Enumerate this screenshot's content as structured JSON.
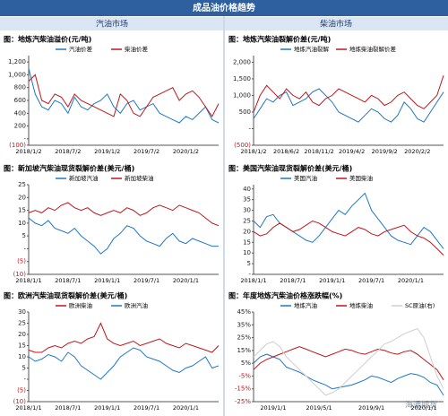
{
  "header": {
    "title": "成品油价格趋势",
    "left": "汽油市场",
    "right": "柴油市场",
    "watermark": "海通期货"
  },
  "chart_data": [
    {
      "type": "line",
      "title": "图：地炼汽柴油溢价(元/吨)",
      "categories": [
        "2018/1/2",
        null,
        null,
        null,
        null,
        null,
        "2018/7/2",
        null,
        null,
        null,
        null,
        null,
        "2019/1/2",
        null,
        null,
        null,
        null,
        null,
        "2019/7/2",
        null,
        null,
        null,
        null,
        null,
        "2020/1/2",
        null,
        null,
        null,
        null,
        null
      ],
      "series": [
        {
          "name": "汽油价差",
          "color": "#1f77c8",
          "values": [
            1100,
            700,
            500,
            450,
            600,
            550,
            400,
            650,
            500,
            450,
            550,
            600,
            700,
            500,
            400,
            550,
            600,
            450,
            500,
            550,
            400,
            350,
            300,
            250,
            350,
            300,
            400,
            500,
            300,
            250
          ]
        },
        {
          "name": "柴油价差",
          "color": "#c0161d",
          "values": [
            900,
            1000,
            600,
            550,
            700,
            650,
            500,
            700,
            600,
            550,
            500,
            450,
            400,
            350,
            700,
            600,
            400,
            350,
            500,
            650,
            700,
            750,
            800,
            600,
            700,
            750,
            650,
            500,
            350,
            550
          ]
        }
      ],
      "ylim": [
        -100,
        1300
      ],
      "yticks": [
        {
          "value": 1200,
          "label": "1,200"
        },
        {
          "value": 1000,
          "label": "1,000"
        },
        800,
        600,
        400,
        200,
        {
          "value": 0,
          "label": "-"
        },
        {
          "value": -100,
          "label": "(100)"
        }
      ]
    },
    {
      "type": "line",
      "title": "图：地炼汽柴油裂解价差(元/吨)",
      "categories": [
        "2018/1/2",
        null,
        null,
        null,
        null,
        "2018/6/2",
        null,
        null,
        null,
        null,
        "2018/11/2",
        null,
        null,
        null,
        null,
        "2019/4/2",
        null,
        null,
        null,
        null,
        "2019/9/2",
        null,
        null,
        null,
        null,
        "2020/2/2",
        null,
        null,
        null,
        null
      ],
      "series": [
        {
          "name": "地炼汽油裂解",
          "color": "#1f77c8",
          "values": [
            300,
            600,
            900,
            800,
            1000,
            1100,
            700,
            800,
            900,
            1100,
            1200,
            1000,
            800,
            500,
            400,
            300,
            200,
            400,
            600,
            500,
            300,
            200,
            400,
            800,
            600,
            300,
            200,
            500,
            800,
            1100
          ]
        },
        {
          "name": "地炼柴油裂解价差",
          "color": "#c0161d",
          "values": [
            500,
            1000,
            1300,
            1100,
            900,
            1200,
            1000,
            900,
            1100,
            800,
            700,
            900,
            1000,
            1200,
            1100,
            1000,
            900,
            800,
            1000,
            900,
            700,
            800,
            1000,
            1100,
            900,
            700,
            600,
            800,
            1000,
            1600
          ]
        }
      ],
      "ylim": [
        -500,
        2200
      ],
      "yticks": [
        {
          "value": 2000,
          "label": "2,000"
        },
        {
          "value": 1500,
          "label": "1,500"
        },
        {
          "value": 1000,
          "label": "1,000"
        },
        500,
        {
          "value": 0,
          "label": "-"
        },
        {
          "value": -500,
          "label": "(500)"
        }
      ]
    },
    {
      "type": "line",
      "title": "图：新加坡汽柴油现货裂解价差(美元/桶)",
      "categories": [
        "2018/1/1",
        null,
        null,
        null,
        null,
        null,
        "2018/7/1",
        null,
        null,
        null,
        null,
        null,
        "2019/1/1",
        null,
        null,
        null,
        null,
        null,
        "2019/7/1",
        null,
        null,
        null,
        null,
        null,
        "2020/1/1",
        null,
        null,
        null,
        null,
        null
      ],
      "series": [
        {
          "name": "新加坡汽油",
          "color": "#1f77c8",
          "values": [
            12,
            10,
            9,
            11,
            8,
            7,
            6,
            8,
            5,
            3,
            1,
            -2,
            0,
            4,
            6,
            9,
            8,
            5,
            3,
            2,
            1,
            4,
            6,
            3,
            2,
            4,
            3,
            2,
            1,
            1
          ]
        },
        {
          "name": "新加坡柴油",
          "color": "#c0161d",
          "values": [
            14,
            15,
            14,
            16,
            15,
            17,
            18,
            16,
            15,
            16,
            14,
            13,
            14,
            15,
            14,
            16,
            15,
            13,
            14,
            16,
            17,
            16,
            15,
            17,
            16,
            15,
            14,
            12,
            10,
            9
          ]
        }
      ],
      "ylim": [
        -10,
        25
      ],
      "yticks": [
        25,
        20,
        15,
        10,
        5,
        {
          "value": 0,
          "label": "-"
        },
        {
          "value": -5,
          "label": "(5)"
        },
        {
          "value": -10,
          "label": "(10)"
        }
      ]
    },
    {
      "type": "line",
      "title": "图：美国汽柴油现货裂解价差(美元/桶)",
      "categories": [
        "2018/1/1",
        null,
        null,
        null,
        null,
        null,
        "2018/7/1",
        null,
        null,
        null,
        null,
        null,
        "2019/1/1",
        null,
        null,
        null,
        null,
        null,
        "2019/7/1",
        null,
        null,
        null,
        null,
        null,
        "2020/1/1",
        null,
        null,
        null,
        null,
        null
      ],
      "series": [
        {
          "name": "美国汽油",
          "color": "#1f77c8",
          "values": [
            25,
            22,
            27,
            28,
            24,
            22,
            20,
            18,
            16,
            15,
            18,
            22,
            26,
            30,
            28,
            32,
            35,
            38,
            30,
            26,
            22,
            18,
            16,
            15,
            14,
            18,
            22,
            20,
            16,
            12
          ]
        },
        {
          "name": "美国柴油",
          "color": "#c0161d",
          "values": [
            20,
            18,
            19,
            22,
            24,
            22,
            20,
            21,
            23,
            25,
            24,
            22,
            20,
            19,
            18,
            20,
            22,
            21,
            19,
            18,
            20,
            21,
            22,
            23,
            20,
            18,
            17,
            15,
            12,
            9
          ]
        }
      ],
      "ylim": [
        0,
        42
      ],
      "yticks": [
        40,
        35,
        30,
        25,
        20,
        15,
        10,
        5,
        {
          "value": 0,
          "label": "-"
        }
      ]
    },
    {
      "type": "line",
      "title": "图：欧洲汽柴油现货裂解价差(美元/桶)",
      "categories": [
        "2018/1/1",
        null,
        null,
        null,
        null,
        null,
        "2018/7/1",
        null,
        null,
        null,
        null,
        null,
        "2019/1/1",
        null,
        null,
        null,
        null,
        null,
        "2019/7/1",
        null,
        null,
        null,
        null,
        null,
        "2020/1/1",
        null,
        null,
        null,
        null,
        null
      ],
      "series": [
        {
          "name": "欧洲柴油",
          "color": "#c0161d",
          "values": [
            13,
            12,
            12,
            14,
            15,
            14,
            16,
            17,
            16,
            18,
            19,
            25,
            18,
            16,
            15,
            16,
            17,
            15,
            16,
            17,
            18,
            16,
            15,
            14,
            16,
            15,
            14,
            13,
            12,
            15
          ]
        },
        {
          "name": "欧洲汽油",
          "color": "#1f77c8",
          "values": [
            10,
            8,
            9,
            11,
            10,
            8,
            12,
            10,
            6,
            4,
            2,
            0,
            3,
            6,
            10,
            12,
            14,
            13,
            10,
            9,
            8,
            6,
            4,
            3,
            5,
            6,
            8,
            10,
            5,
            6
          ]
        }
      ],
      "ylim": [
        -10,
        30
      ],
      "yticks": [
        30,
        25,
        20,
        15,
        10,
        5,
        {
          "value": 0,
          "label": "-"
        },
        {
          "value": -5,
          "label": "(5)"
        },
        {
          "value": -10,
          "label": "(10)"
        }
      ]
    },
    {
      "type": "line",
      "title": "图：年度地炼汽柴油价格涨跌幅(%)",
      "categories": [
        null,
        null,
        null,
        "2019/1/1",
        null,
        null,
        null,
        null,
        null,
        null,
        "2019/5/1",
        null,
        null,
        null,
        null,
        null,
        null,
        null,
        "2019/9/1",
        null,
        null,
        null,
        null,
        null,
        null,
        null,
        "2020/1/1",
        null,
        null,
        null
      ],
      "series": [
        {
          "name": "地炼汽油",
          "color": "#1f77c8",
          "values": [
            5,
            10,
            12,
            10,
            8,
            2,
            0,
            -2,
            -5,
            -8,
            -10,
            -12,
            -15,
            -14,
            -13,
            -12,
            -10,
            -8,
            -5,
            -6,
            -8,
            -10,
            -7,
            -5,
            -3,
            -4,
            -6,
            -10,
            -12,
            -20
          ]
        },
        {
          "name": "地炼柴油",
          "color": "#c0161d",
          "values": [
            0,
            5,
            8,
            10,
            12,
            14,
            16,
            18,
            16,
            14,
            12,
            10,
            12,
            14,
            16,
            15,
            13,
            12,
            14,
            16,
            15,
            13,
            12,
            14,
            15,
            12,
            8,
            4,
            0,
            -8
          ]
        },
        {
          "name": "SC原油(右)",
          "color": "#cfcfcf",
          "values": [
            10,
            15,
            20,
            22,
            18,
            10,
            5,
            0,
            -5,
            -10,
            -15,
            -20,
            -18,
            -15,
            -10,
            -5,
            0,
            5,
            10,
            15,
            20,
            22,
            25,
            28,
            30,
            32,
            25,
            10,
            -5,
            -15
          ]
        }
      ],
      "ylim": [
        -25,
        45
      ],
      "yticks": [
        {
          "value": 45,
          "label": "45%"
        },
        {
          "value": 35,
          "label": "35%"
        },
        {
          "value": 25,
          "label": "25%"
        },
        {
          "value": 15,
          "label": "15%"
        },
        {
          "value": 5,
          "label": "5%"
        },
        {
          "value": -5,
          "label": "-5%"
        },
        {
          "value": -15,
          "label": "-15%"
        },
        {
          "value": -25,
          "label": "-25%"
        }
      ]
    }
  ]
}
